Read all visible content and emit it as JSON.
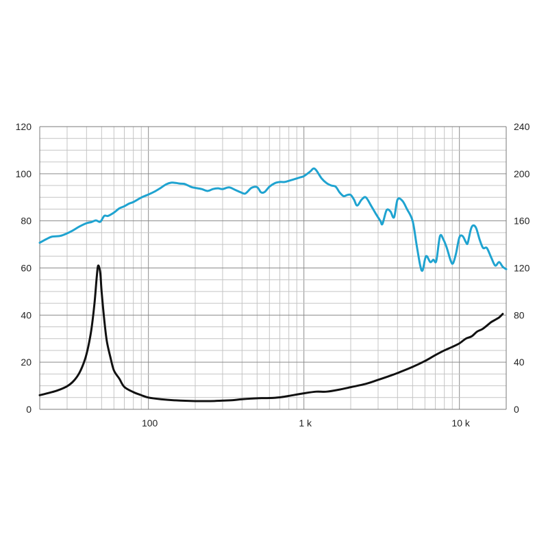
{
  "chart_data": {
    "type": "line",
    "x_scale": "log",
    "xlim": [
      20,
      20000
    ],
    "x_ticks": [
      {
        "value": 100,
        "label": "100"
      },
      {
        "value": 1000,
        "label": "1 k"
      },
      {
        "value": 10000,
        "label": "10 k"
      }
    ],
    "y_left": {
      "lim": [
        0,
        120
      ],
      "ticks": [
        0,
        20,
        40,
        60,
        80,
        100,
        120
      ],
      "tick_labels": [
        "0",
        "20",
        "40",
        "60",
        "80",
        "100",
        "120"
      ]
    },
    "y_right": {
      "lim": [
        0,
        240
      ],
      "ticks": [
        0,
        40,
        80,
        120,
        160,
        200,
        240
      ],
      "tick_labels": [
        "0",
        "40",
        "80",
        "120",
        "160",
        "200",
        "240"
      ]
    },
    "grid": true,
    "title": "",
    "xlabel": "",
    "ylabel": "",
    "series": [
      {
        "axis": "left",
        "color": "#1fa3d0",
        "points": [
          [
            20,
            70.7
          ],
          [
            22,
            72.2
          ],
          [
            24,
            73.3
          ],
          [
            27,
            73.6
          ],
          [
            30,
            74.7
          ],
          [
            33,
            76.1
          ],
          [
            36,
            77.6
          ],
          [
            40,
            79.0
          ],
          [
            43,
            79.5
          ],
          [
            46,
            80.2
          ],
          [
            49,
            79.6
          ],
          [
            52,
            82.1
          ],
          [
            55,
            82.1
          ],
          [
            60,
            83.5
          ],
          [
            65,
            85.3
          ],
          [
            70,
            86.2
          ],
          [
            75,
            87.3
          ],
          [
            80,
            88.0
          ],
          [
            90,
            89.9
          ],
          [
            100,
            91.2
          ],
          [
            110,
            92.5
          ],
          [
            120,
            94.0
          ],
          [
            130,
            95.5
          ],
          [
            140,
            96.2
          ],
          [
            150,
            96.1
          ],
          [
            160,
            95.8
          ],
          [
            170,
            95.7
          ],
          [
            180,
            95.0
          ],
          [
            190,
            94.3
          ],
          [
            200,
            94.0
          ],
          [
            220,
            93.5
          ],
          [
            240,
            92.7
          ],
          [
            260,
            93.5
          ],
          [
            280,
            93.8
          ],
          [
            300,
            93.5
          ],
          [
            330,
            94.2
          ],
          [
            360,
            93.2
          ],
          [
            390,
            92.2
          ],
          [
            420,
            91.6
          ],
          [
            460,
            94.0
          ],
          [
            500,
            94.3
          ],
          [
            530,
            92.1
          ],
          [
            560,
            92.3
          ],
          [
            600,
            94.5
          ],
          [
            650,
            96.0
          ],
          [
            700,
            96.5
          ],
          [
            750,
            96.5
          ],
          [
            800,
            97.0
          ],
          [
            850,
            97.5
          ],
          [
            900,
            98.0
          ],
          [
            950,
            98.5
          ],
          [
            1000,
            99.0
          ],
          [
            1100,
            101.0
          ],
          [
            1150,
            102.2
          ],
          [
            1200,
            101.5
          ],
          [
            1300,
            98.0
          ],
          [
            1400,
            96.0
          ],
          [
            1500,
            95.0
          ],
          [
            1600,
            94.5
          ],
          [
            1700,
            92.0
          ],
          [
            1800,
            90.5
          ],
          [
            1900,
            91.0
          ],
          [
            2000,
            91.0
          ],
          [
            2100,
            89.0
          ],
          [
            2200,
            86.5
          ],
          [
            2350,
            89.0
          ],
          [
            2500,
            90.0
          ],
          [
            2700,
            86.5
          ],
          [
            2900,
            83.0
          ],
          [
            3100,
            80.0
          ],
          [
            3200,
            78.7
          ],
          [
            3400,
            84.5
          ],
          [
            3600,
            84.0
          ],
          [
            3800,
            81.5
          ],
          [
            4000,
            89.0
          ],
          [
            4300,
            88.5
          ],
          [
            4600,
            85.0
          ],
          [
            5000,
            80.0
          ],
          [
            5300,
            70.0
          ],
          [
            5600,
            61.0
          ],
          [
            5800,
            59.0
          ],
          [
            6100,
            65.0
          ],
          [
            6500,
            62.5
          ],
          [
            6800,
            63.5
          ],
          [
            7100,
            63.0
          ],
          [
            7500,
            73.5
          ],
          [
            7900,
            72.0
          ],
          [
            8300,
            68.5
          ],
          [
            8800,
            63.0
          ],
          [
            9100,
            62.0
          ],
          [
            9500,
            66.0
          ],
          [
            10000,
            73.0
          ],
          [
            10500,
            73.5
          ],
          [
            11000,
            71.0
          ],
          [
            11300,
            70.5
          ],
          [
            11800,
            76.0
          ],
          [
            12200,
            78.0
          ],
          [
            12800,
            77.0
          ],
          [
            13500,
            72.0
          ],
          [
            14200,
            68.5
          ],
          [
            15000,
            68.5
          ],
          [
            16000,
            64.5
          ],
          [
            17000,
            61.0
          ],
          [
            18000,
            62.5
          ],
          [
            19000,
            60.5
          ],
          [
            20000,
            59.5
          ]
        ]
      },
      {
        "axis": "left",
        "color": "#111111",
        "points": [
          [
            20,
            6.0
          ],
          [
            23,
            7.0
          ],
          [
            26,
            8.0
          ],
          [
            30,
            9.8
          ],
          [
            33,
            12.0
          ],
          [
            36,
            15.5
          ],
          [
            39,
            21.0
          ],
          [
            41,
            26.5
          ],
          [
            43,
            34.0
          ],
          [
            45,
            45.0
          ],
          [
            46.5,
            56.0
          ],
          [
            47.5,
            61.0
          ],
          [
            49,
            58.0
          ],
          [
            50,
            50.0
          ],
          [
            52,
            38.0
          ],
          [
            54,
            29.0
          ],
          [
            57,
            22.0
          ],
          [
            60,
            16.5
          ],
          [
            65,
            13.0
          ],
          [
            70,
            9.5
          ],
          [
            80,
            7.3
          ],
          [
            90,
            6.0
          ],
          [
            100,
            5.0
          ],
          [
            120,
            4.3
          ],
          [
            150,
            3.8
          ],
          [
            200,
            3.5
          ],
          [
            250,
            3.5
          ],
          [
            300,
            3.7
          ],
          [
            350,
            3.9
          ],
          [
            400,
            4.3
          ],
          [
            500,
            4.7
          ],
          [
            600,
            4.8
          ],
          [
            700,
            5.1
          ],
          [
            800,
            5.7
          ],
          [
            1000,
            6.8
          ],
          [
            1200,
            7.5
          ],
          [
            1400,
            7.5
          ],
          [
            1700,
            8.4
          ],
          [
            2000,
            9.4
          ],
          [
            2500,
            10.8
          ],
          [
            3000,
            12.5
          ],
          [
            3500,
            14.0
          ],
          [
            4000,
            15.4
          ],
          [
            5000,
            18.0
          ],
          [
            6000,
            20.5
          ],
          [
            7000,
            23.0
          ],
          [
            8000,
            25.0
          ],
          [
            9000,
            26.5
          ],
          [
            10000,
            28.0
          ],
          [
            11000,
            30.0
          ],
          [
            12000,
            31.0
          ],
          [
            13000,
            33.0
          ],
          [
            14000,
            34.0
          ],
          [
            15000,
            35.5
          ],
          [
            16000,
            37.0
          ],
          [
            17000,
            38.0
          ],
          [
            18000,
            39.0
          ],
          [
            19000,
            40.5
          ]
        ]
      }
    ]
  }
}
